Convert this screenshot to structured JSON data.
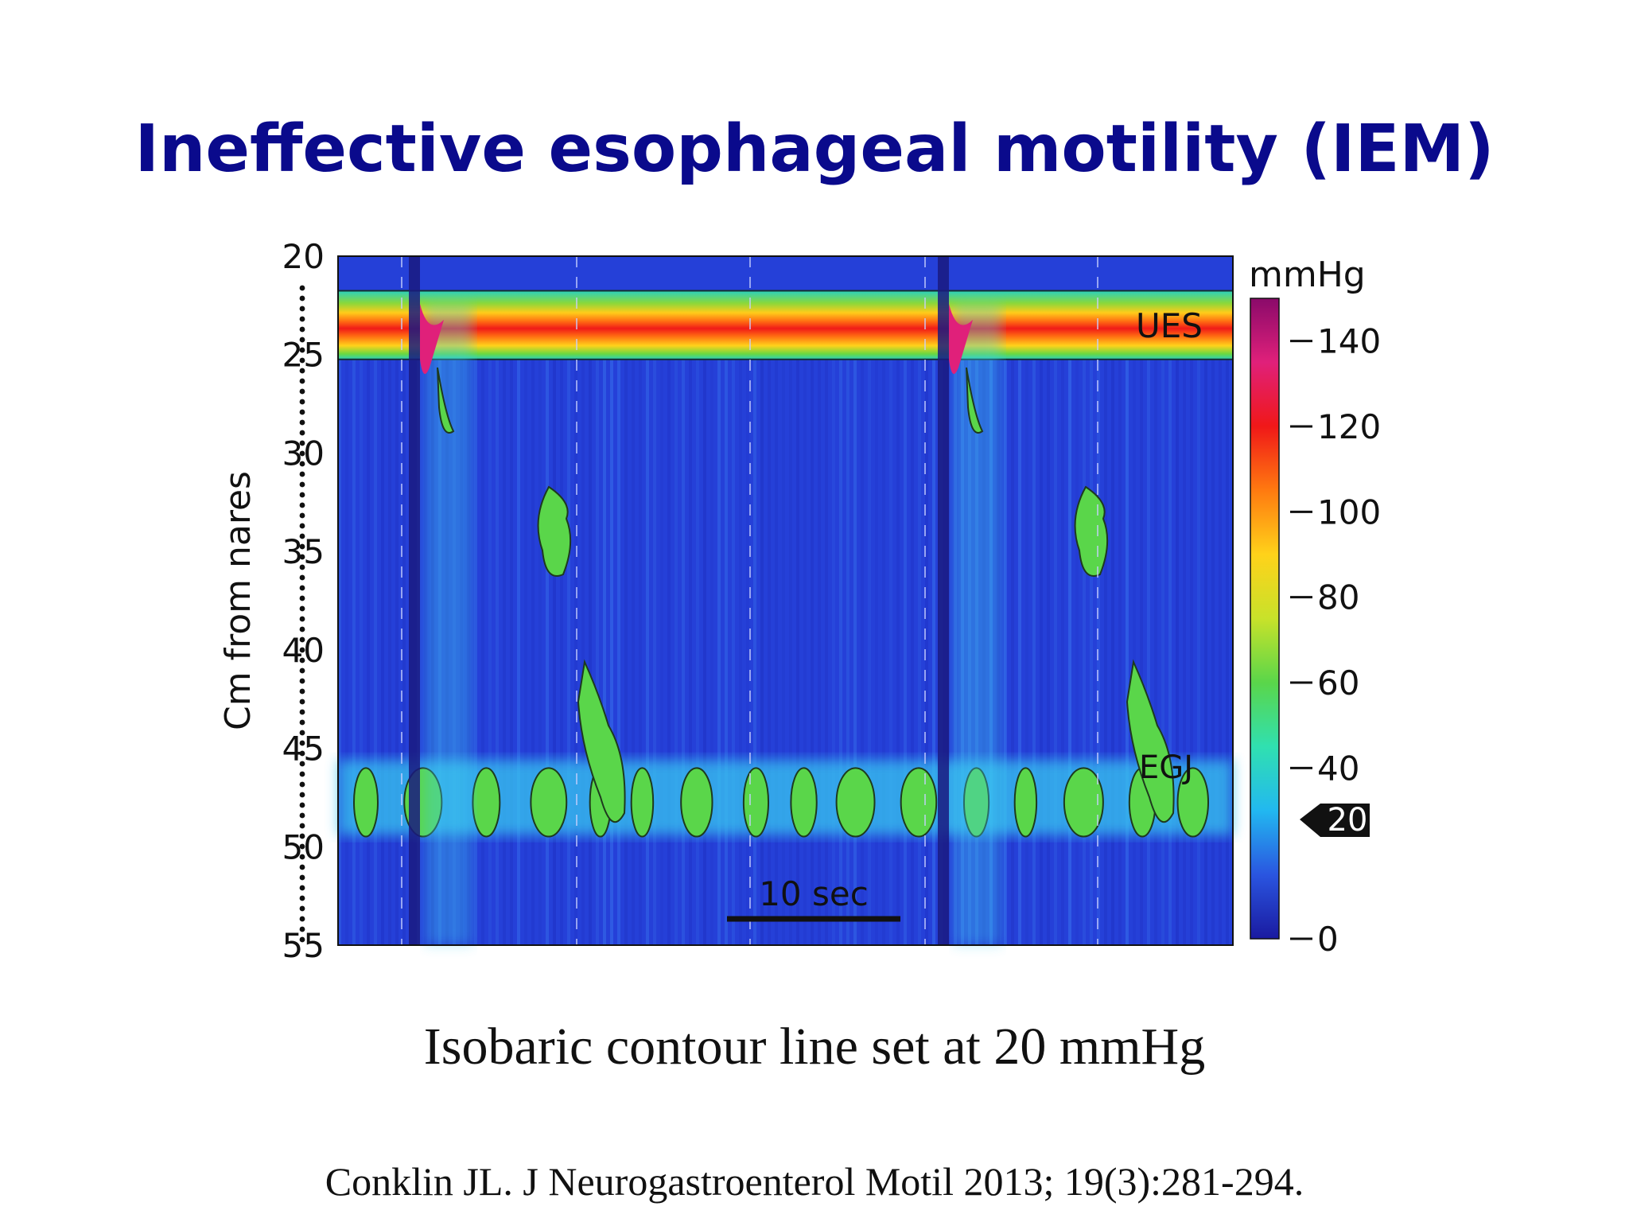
{
  "slide": {
    "title": "Ineffective esophageal motility (IEM)",
    "caption": "Isobaric contour line set at 20 mmHg",
    "citation": "Conklin JL. J Neurogastroenterol Motil 2013; 19(3):281-294."
  },
  "chart_data": {
    "type": "heatmap",
    "title": "",
    "ylabel": "Cm from nares",
    "yticks": [
      "20",
      "25",
      "30",
      "35",
      "40",
      "45",
      "50",
      "55"
    ],
    "ylim": [
      20,
      55
    ],
    "y_inverted": true,
    "colorbar": {
      "unit": "mmHg",
      "ticks": [
        "140",
        "120",
        "100",
        "80",
        "60",
        "40",
        "0"
      ],
      "range": [
        0,
        150
      ],
      "marker": "20",
      "colors": [
        "#1a1aa0",
        "#2a55e0",
        "#22b8f0",
        "#30e0b0",
        "#5ad64a",
        "#c8e22a",
        "#ffd21a",
        "#ff7a10",
        "#f01818",
        "#e0207a",
        "#8a0a6a"
      ]
    },
    "contour_mmHg": 20,
    "scale_bar": "10 sec",
    "annotations": [
      "UES",
      "EGJ"
    ],
    "swallows": 2,
    "segments": [
      {
        "name": "UES",
        "y_range": [
          22,
          25
        ],
        "pressure_mmHg": 100
      },
      {
        "name": "EGJ",
        "y_range": [
          46,
          49
        ],
        "pressure_mmHg": 40
      }
    ]
  }
}
